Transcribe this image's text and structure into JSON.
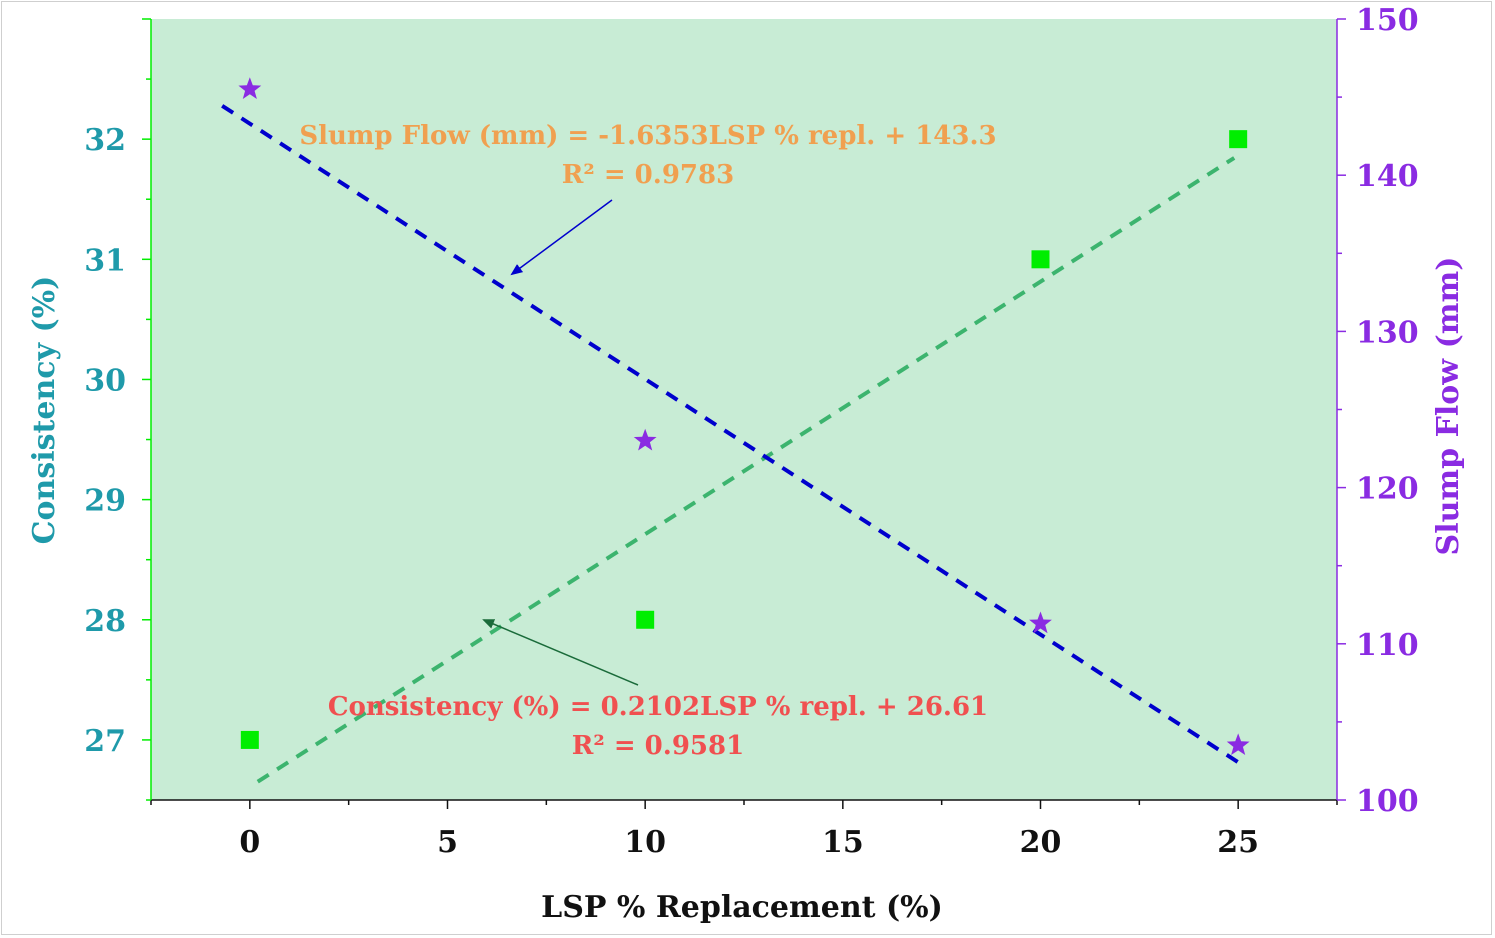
{
  "chart_data": {
    "type": "scatter",
    "xlabel": "LSP % Replacement (%)",
    "ylabel": "Consistency (%)",
    "y2label": "Slump Flow (mm)",
    "xlim": [
      -2.5,
      27.5
    ],
    "ylim": [
      26.5,
      33.0
    ],
    "y2lim": [
      100,
      150
    ],
    "x_ticks": [
      "0",
      "5",
      "10",
      "15",
      "20",
      "25"
    ],
    "y_ticks": [
      "27",
      "28",
      "29",
      "30",
      "31",
      "32"
    ],
    "y2_ticks": [
      "100",
      "110",
      "120",
      "130",
      "140",
      "150"
    ],
    "grid": false,
    "background": "#c8ecd5",
    "series": [
      {
        "axis": "left",
        "marker": "square",
        "color": "#00ee00",
        "x": [
          0,
          10,
          20,
          25
        ],
        "y": [
          27,
          28,
          31,
          32
        ]
      },
      {
        "axis": "right",
        "marker": "star",
        "color": "#8a2be2",
        "x": [
          0,
          10,
          20,
          25
        ],
        "y": [
          145.5,
          123,
          111.3,
          103.5
        ]
      }
    ],
    "trendlines": [
      {
        "axis": "left",
        "slope": 0.2102,
        "intercept": 26.61,
        "x_range": [
          0.2,
          24.9
        ],
        "color": "#3cb46e",
        "style": "dashed"
      },
      {
        "axis": "right",
        "slope": -1.6353,
        "intercept": 143.3,
        "x_range": [
          -0.7,
          25
        ],
        "color": "#0000cd",
        "style": "dashed"
      }
    ],
    "annotations": [
      {
        "text": "Slump Flow (mm) = -1.6353LSP % repl. + 143.3",
        "color": "#f0a050"
      },
      {
        "text": "R² = 0.9783",
        "color": "#f0a050"
      },
      {
        "text": "Consistency (%) = 0.2102LSP % repl. + 26.61",
        "color": "#f05050"
      },
      {
        "text": "R² = 0.9581",
        "color": "#f05050"
      }
    ],
    "colors": {
      "left_axis": "#00ee00",
      "left_ticks": "#1f9aaa",
      "right_axis": "#8a2be2",
      "bottom_axis": "#111111",
      "slump_arrow": "#0000cd",
      "consistency_arrow": "#1a6b3a"
    }
  }
}
